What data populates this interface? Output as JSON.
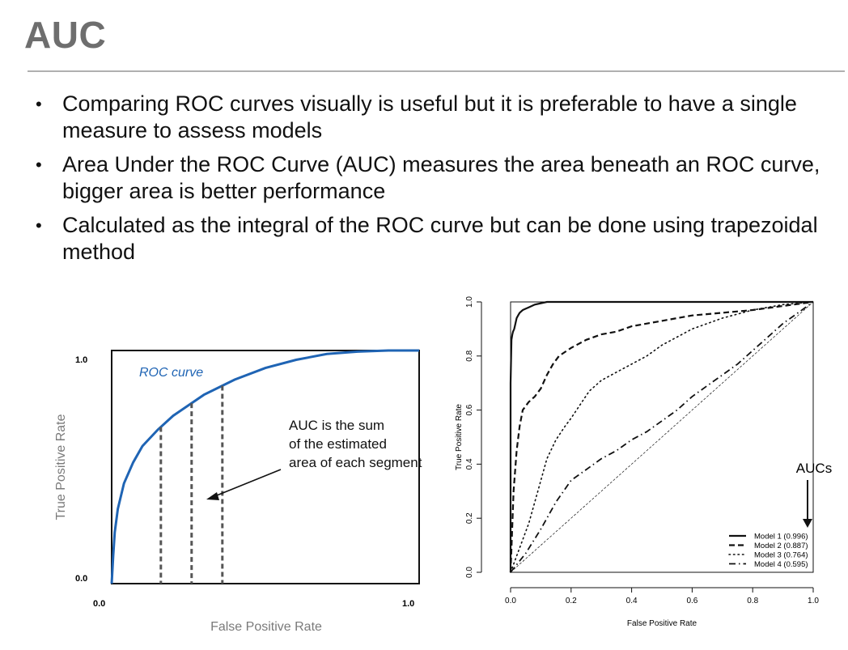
{
  "slide": {
    "title": "AUC",
    "bullets": [
      "Comparing ROC curves visually is useful but it is preferable to have a single measure to assess models",
      "Area Under the ROC Curve (AUC) measures the area beneath an ROC curve, bigger area is better performance",
      "Calculated as the integral of the ROC curve but can be done using trapezoidal method"
    ]
  },
  "chart_data": [
    {
      "type": "line",
      "title": "",
      "xlabel": "False Positive Rate",
      "ylabel": "True Positive Rate",
      "xlim": [
        0,
        1
      ],
      "ylim": [
        0,
        1
      ],
      "x_ticks": [
        "0.0",
        "1.0"
      ],
      "y_ticks": [
        "0.0",
        "1.0"
      ],
      "grid": false,
      "series": [
        {
          "name": "ROC curve",
          "color": "#1f64b4",
          "x": [
            0,
            0.005,
            0.01,
            0.02,
            0.04,
            0.07,
            0.1,
            0.15,
            0.2,
            0.3,
            0.4,
            0.5,
            0.6,
            0.7,
            0.8,
            0.9,
            1.0
          ],
          "y": [
            0,
            0.12,
            0.22,
            0.32,
            0.43,
            0.52,
            0.59,
            0.66,
            0.72,
            0.81,
            0.875,
            0.925,
            0.96,
            0.985,
            0.995,
            1.0,
            1.0
          ]
        }
      ],
      "segments_x": [
        0.16,
        0.26,
        0.36
      ],
      "annotation": "AUC is the sum of the estimated area of each segment"
    },
    {
      "type": "line",
      "title": "",
      "xlabel": "False Positive Rate",
      "ylabel": "True Positive Rate",
      "xlim": [
        0,
        1
      ],
      "ylim": [
        0,
        1
      ],
      "x_ticks": [
        "0.0",
        "0.2",
        "0.4",
        "0.6",
        "0.8",
        "1.0"
      ],
      "y_ticks": [
        "0.0",
        "0.2",
        "0.4",
        "0.6",
        "0.8",
        "1.0"
      ],
      "grid": false,
      "legend_position": "bottom-right",
      "annotation": "AUCs",
      "series": [
        {
          "name": "Model 1 (0.996)",
          "dash": "solid",
          "x": [
            0,
            0.0,
            0.003,
            0.006,
            0.008,
            0.012,
            0.016,
            0.02,
            0.025,
            0.03,
            0.04,
            0.06,
            0.08,
            0.12,
            0.2,
            0.4,
            0.6,
            0.8,
            1.0
          ],
          "y": [
            0,
            0.7,
            0.86,
            0.88,
            0.89,
            0.9,
            0.92,
            0.94,
            0.95,
            0.96,
            0.97,
            0.98,
            0.99,
            1.0,
            1.0,
            1.0,
            1.0,
            1.0,
            1.0
          ]
        },
        {
          "name": "Model 2 (0.887)",
          "dash": "dashed",
          "x": [
            0,
            0.01,
            0.02,
            0.03,
            0.04,
            0.06,
            0.08,
            0.1,
            0.12,
            0.14,
            0.16,
            0.2,
            0.25,
            0.3,
            0.35,
            0.4,
            0.5,
            0.6,
            0.7,
            0.8,
            0.9,
            1.0
          ],
          "y": [
            0,
            0.3,
            0.45,
            0.54,
            0.6,
            0.63,
            0.65,
            0.68,
            0.73,
            0.77,
            0.8,
            0.83,
            0.86,
            0.88,
            0.89,
            0.91,
            0.93,
            0.95,
            0.96,
            0.97,
            0.985,
            1.0
          ]
        },
        {
          "name": "Model 3 (0.764)",
          "dash": "dotted",
          "x": [
            0,
            0.03,
            0.06,
            0.09,
            0.12,
            0.15,
            0.18,
            0.2,
            0.23,
            0.26,
            0.3,
            0.35,
            0.4,
            0.45,
            0.5,
            0.55,
            0.6,
            0.7,
            0.8,
            0.9,
            1.0
          ],
          "y": [
            0,
            0.09,
            0.18,
            0.3,
            0.42,
            0.49,
            0.54,
            0.57,
            0.62,
            0.67,
            0.71,
            0.74,
            0.77,
            0.8,
            0.84,
            0.87,
            0.9,
            0.94,
            0.97,
            0.99,
            1.0
          ]
        },
        {
          "name": "Model 4 (0.595)",
          "dash": "dashdot",
          "x": [
            0,
            0.05,
            0.1,
            0.15,
            0.2,
            0.25,
            0.3,
            0.35,
            0.4,
            0.45,
            0.5,
            0.55,
            0.6,
            0.65,
            0.7,
            0.75,
            0.8,
            0.85,
            0.9,
            0.95,
            1.0
          ],
          "y": [
            0,
            0.07,
            0.16,
            0.26,
            0.34,
            0.38,
            0.42,
            0.45,
            0.49,
            0.52,
            0.56,
            0.6,
            0.65,
            0.69,
            0.73,
            0.77,
            0.82,
            0.87,
            0.92,
            0.96,
            1.0
          ]
        },
        {
          "name": "",
          "dash": "thin-dashed",
          "x": [
            0,
            1
          ],
          "y": [
            0,
            1
          ]
        }
      ]
    }
  ]
}
